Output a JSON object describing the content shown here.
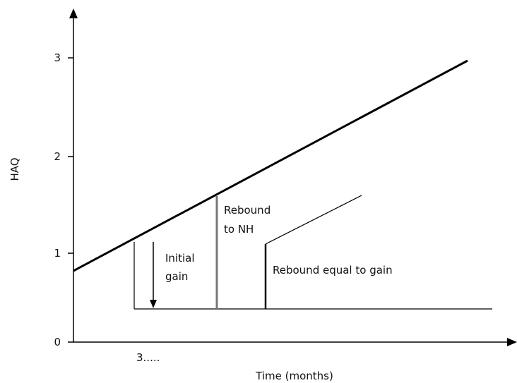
{
  "axes": {
    "y_label": "HAQ",
    "x_label": "Time (months)",
    "x_tick": "3.....",
    "y_ticks": [
      "0",
      "1",
      "2",
      "3"
    ]
  },
  "annotations": {
    "initial_gain_line1": "Initial",
    "initial_gain_line2": "gain",
    "rebound_nh_line1": "Rebound",
    "rebound_nh_line2": "to NH",
    "rebound_equal": "Rebound equal to gain"
  }
}
